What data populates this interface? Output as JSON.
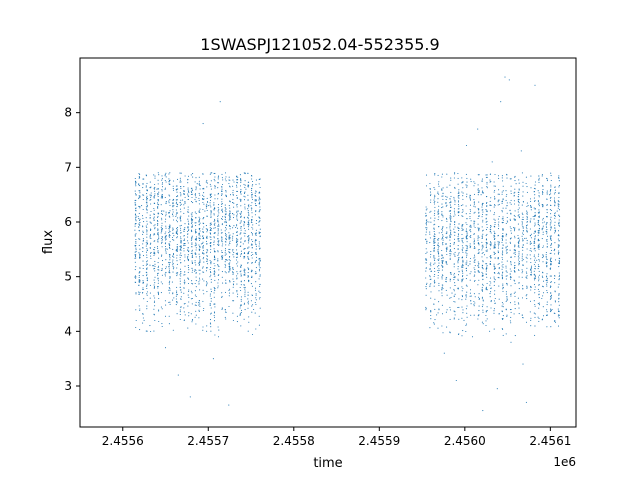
{
  "chart_data": {
    "type": "scatter",
    "title": "1SWASPJ121052.04-552355.9",
    "xlabel": "time",
    "ylabel": "flux",
    "x_offset_label": "1e6",
    "xlim": [
      2455550,
      2456130
    ],
    "ylim": [
      2.25,
      9.0
    ],
    "x_ticks": [
      2455600,
      2455700,
      2455800,
      2455900,
      2456000,
      2456100
    ],
    "x_tick_labels": [
      "2.4556",
      "2.4557",
      "2.4558",
      "2.4559",
      "2.4560",
      "2.4561"
    ],
    "y_ticks": [
      3,
      4,
      5,
      6,
      7,
      8
    ],
    "y_tick_labels": [
      "3",
      "4",
      "5",
      "6",
      "7",
      "8"
    ],
    "grid": false,
    "marker_color": "#1f77b4",
    "series": [
      {
        "observing_season_1": {
          "time_range": [
            2455615,
            2455760
          ],
          "flux_center": 5.7
        },
        "observing_season_2": {
          "time_range": [
            2455955,
            2456110
          ],
          "flux_center": 5.6
        },
        "points": [
          [
            2455618,
            6.1
          ],
          [
            2455620,
            5.4
          ],
          [
            2455622,
            6.3
          ],
          [
            2455625,
            4.2
          ],
          [
            2455628,
            5.9
          ],
          [
            2455632,
            6.0
          ],
          [
            2455635,
            5.2
          ],
          [
            2455640,
            6.6
          ],
          [
            2455642,
            4.6
          ],
          [
            2455645,
            5.8
          ],
          [
            2455648,
            6.2
          ],
          [
            2455650,
            3.7
          ],
          [
            2455652,
            5.5
          ],
          [
            2455655,
            6.9
          ],
          [
            2455658,
            4.9
          ],
          [
            2455662,
            6.1
          ],
          [
            2455665,
            3.2
          ],
          [
            2455668,
            5.7
          ],
          [
            2455670,
            6.4
          ],
          [
            2455673,
            4.3
          ],
          [
            2455676,
            5.9
          ],
          [
            2455679,
            2.8
          ],
          [
            2455681,
            6.0
          ],
          [
            2455684,
            5.1
          ],
          [
            2455687,
            6.7
          ],
          [
            2455690,
            4.5
          ],
          [
            2455692,
            5.6
          ],
          [
            2455694,
            7.8
          ],
          [
            2455696,
            6.2
          ],
          [
            2455698,
            4.0
          ],
          [
            2455700,
            6.3
          ],
          [
            2455702,
            5.0
          ],
          [
            2455704,
            6.9
          ],
          [
            2455706,
            3.5
          ],
          [
            2455708,
            5.8
          ],
          [
            2455711,
            6.1
          ],
          [
            2455714,
            8.2
          ],
          [
            2455716,
            4.4
          ],
          [
            2455719,
            6.0
          ],
          [
            2455722,
            5.3
          ],
          [
            2455724,
            2.65
          ],
          [
            2455726,
            6.5
          ],
          [
            2455729,
            4.7
          ],
          [
            2455732,
            5.9
          ],
          [
            2455735,
            6.2
          ],
          [
            2455738,
            4.1
          ],
          [
            2455741,
            5.6
          ],
          [
            2455744,
            6.6
          ],
          [
            2455747,
            5.0
          ],
          [
            2455750,
            6.3
          ],
          [
            2455753,
            4.4
          ],
          [
            2455756,
            5.8
          ],
          [
            2455958,
            6.0
          ],
          [
            2455961,
            5.1
          ],
          [
            2455964,
            6.4
          ],
          [
            2455967,
            4.3
          ],
          [
            2455970,
            5.8
          ],
          [
            2455973,
            6.6
          ],
          [
            2455976,
            3.6
          ],
          [
            2455979,
            5.5
          ],
          [
            2455982,
            6.2
          ],
          [
            2455985,
            4.7
          ],
          [
            2455988,
            6.9
          ],
          [
            2455990,
            3.1
          ],
          [
            2455993,
            5.7
          ],
          [
            2455996,
            6.3
          ],
          [
            2455999,
            4.2
          ],
          [
            2456002,
            7.4
          ],
          [
            2456004,
            5.2
          ],
          [
            2456006,
            6.1
          ],
          [
            2456009,
            3.9
          ],
          [
            2456012,
            5.9
          ],
          [
            2456015,
            7.7
          ],
          [
            2456017,
            4.6
          ],
          [
            2456019,
            6.5
          ],
          [
            2456021,
            2.55
          ],
          [
            2456023,
            5.4
          ],
          [
            2456026,
            6.2
          ],
          [
            2456029,
            4.0
          ],
          [
            2456032,
            7.1
          ],
          [
            2456035,
            5.6
          ],
          [
            2456038,
            2.95
          ],
          [
            2456040,
            6.4
          ],
          [
            2456042,
            8.2
          ],
          [
            2456045,
            4.8
          ],
          [
            2456047,
            8.65
          ],
          [
            2456050,
            6.0
          ],
          [
            2456052,
            8.6
          ],
          [
            2456054,
            3.8
          ],
          [
            2456057,
            5.9
          ],
          [
            2456060,
            6.7
          ],
          [
            2456063,
            4.5
          ],
          [
            2456066,
            7.3
          ],
          [
            2456068,
            3.4
          ],
          [
            2456070,
            5.7
          ],
          [
            2456072,
            2.7
          ],
          [
            2456074,
            6.3
          ],
          [
            2456077,
            4.2
          ],
          [
            2456080,
            6.1
          ],
          [
            2456082,
            8.5
          ],
          [
            2456084,
            5.3
          ],
          [
            2456087,
            6.8
          ],
          [
            2456090,
            4.6
          ],
          [
            2456093,
            6.0
          ],
          [
            2456096,
            5.2
          ],
          [
            2456099,
            6.5
          ],
          [
            2456102,
            4.4
          ],
          [
            2456105,
            5.8
          ],
          [
            2456108,
            6.2
          ]
        ]
      }
    ]
  }
}
